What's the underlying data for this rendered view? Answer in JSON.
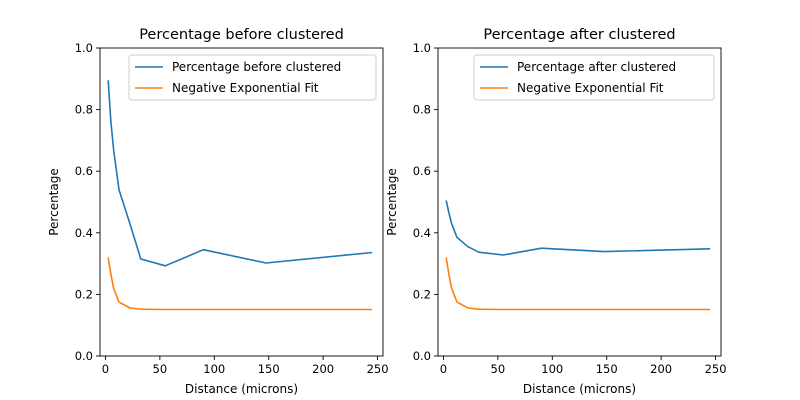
{
  "chart_data": [
    {
      "type": "line",
      "title": "Percentage before clustered",
      "xlabel": "Distance (microns)",
      "ylabel": "Percentage",
      "xlim": [
        -5,
        255
      ],
      "ylim": [
        0,
        1
      ],
      "xticks": [
        0,
        50,
        100,
        150,
        200,
        250
      ],
      "yticks": [
        0.0,
        0.2,
        0.4,
        0.6,
        0.8,
        1.0
      ],
      "legend_loc": "upper right",
      "grid": false,
      "series": [
        {
          "name": "Percentage before clustered",
          "color": "#1f77b4",
          "x": [
            2.5,
            5,
            7.5,
            12.5,
            22.5,
            32.5,
            55,
            90,
            147.5,
            245
          ],
          "y": [
            0.895,
            0.76,
            0.67,
            0.54,
            0.43,
            0.315,
            0.293,
            0.345,
            0.302,
            0.336
          ]
        },
        {
          "name": "Negative Exponential Fit",
          "color": "#ff7f0e",
          "x": [
            2.5,
            5,
            7.5,
            12.5,
            22.5,
            32.5,
            55,
            90,
            147.5,
            245
          ],
          "y": [
            0.32,
            0.265,
            0.22,
            0.175,
            0.156,
            0.152,
            0.151,
            0.151,
            0.151,
            0.151
          ]
        }
      ]
    },
    {
      "type": "line",
      "title": "Percentage after clustered",
      "xlabel": "Distance (microns)",
      "ylabel": "Percentage",
      "xlim": [
        -5,
        255
      ],
      "ylim": [
        0,
        1
      ],
      "xticks": [
        0,
        50,
        100,
        150,
        200,
        250
      ],
      "yticks": [
        0.0,
        0.2,
        0.4,
        0.6,
        0.8,
        1.0
      ],
      "legend_loc": "upper right",
      "grid": false,
      "series": [
        {
          "name": "Percentage after clustered",
          "color": "#1f77b4",
          "x": [
            2.5,
            5,
            7.5,
            12.5,
            22.5,
            32.5,
            55,
            90,
            147.5,
            245
          ],
          "y": [
            0.505,
            0.465,
            0.43,
            0.385,
            0.355,
            0.337,
            0.328,
            0.35,
            0.339,
            0.348
          ]
        },
        {
          "name": "Negative Exponential Fit",
          "color": "#ff7f0e",
          "x": [
            2.5,
            5,
            7.5,
            12.5,
            22.5,
            32.5,
            55,
            90,
            147.5,
            245
          ],
          "y": [
            0.32,
            0.265,
            0.22,
            0.175,
            0.156,
            0.152,
            0.151,
            0.151,
            0.151,
            0.151
          ]
        }
      ]
    }
  ]
}
